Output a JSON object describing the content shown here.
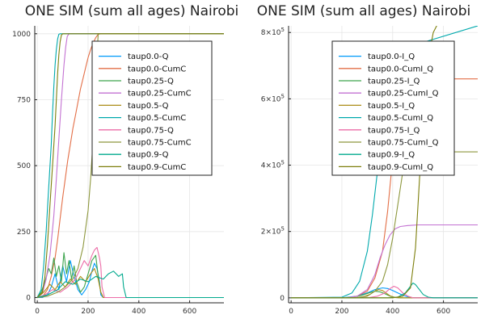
{
  "chart_data": [
    {
      "type": "line",
      "title": "ONE SIM (sum all ages) Nairobi",
      "xlabel": "",
      "ylabel": "",
      "xlim": [
        -10,
        735
      ],
      "ylim": [
        -20,
        1030
      ],
      "xticks": [
        0,
        200,
        400,
        600
      ],
      "xtick_labels": [
        "0",
        "200",
        "400",
        "600"
      ],
      "yticks": [
        0,
        250,
        500,
        750,
        1000
      ],
      "ytick_labels": [
        "0",
        "250",
        "500",
        "750",
        "1000"
      ],
      "grid": true,
      "legend_position": "top-right",
      "series": [
        {
          "name": "taup0.0-Q",
          "color": "#009AFA",
          "x": [
            0,
            20,
            40,
            55,
            70,
            85,
            100,
            115,
            130,
            145,
            160,
            175,
            190,
            205,
            215,
            225,
            235,
            245,
            250,
            260,
            280,
            300,
            735
          ],
          "y": [
            0,
            0,
            10,
            40,
            90,
            30,
            120,
            60,
            140,
            80,
            30,
            10,
            30,
            60,
            100,
            130,
            110,
            60,
            10,
            0,
            0,
            0,
            0
          ]
        },
        {
          "name": "taup0.0-CumC",
          "color": "#E36F47",
          "x": [
            0,
            20,
            40,
            55,
            70,
            80,
            90,
            100,
            110,
            120,
            130,
            140,
            150,
            160,
            170,
            180,
            190,
            200,
            210,
            220,
            230,
            240,
            250,
            260,
            270,
            735
          ],
          "y": [
            0,
            2,
            30,
            80,
            150,
            220,
            300,
            380,
            450,
            520,
            580,
            640,
            690,
            740,
            790,
            830,
            870,
            910,
            940,
            965,
            985,
            998,
            1000,
            1000,
            1000,
            1000
          ]
        },
        {
          "name": "taup0.25-Q",
          "color": "#3EA44E",
          "x": [
            0,
            15,
            30,
            45,
            55,
            65,
            75,
            85,
            95,
            105,
            115,
            125,
            135,
            145,
            155,
            170,
            185,
            200,
            215,
            230,
            240,
            250,
            260,
            270,
            735
          ],
          "y": [
            0,
            20,
            60,
            110,
            90,
            150,
            80,
            120,
            60,
            170,
            90,
            140,
            70,
            120,
            60,
            20,
            40,
            90,
            140,
            160,
            80,
            20,
            0,
            0,
            0
          ]
        },
        {
          "name": "taup0.25-CumC",
          "color": "#C371D2",
          "x": [
            0,
            20,
            35,
            50,
            65,
            75,
            85,
            95,
            105,
            112,
            118,
            125,
            735
          ],
          "y": [
            0,
            15,
            70,
            160,
            310,
            450,
            600,
            750,
            880,
            950,
            990,
            1000,
            1000
          ]
        },
        {
          "name": "taup0.5-Q",
          "color": "#AC8D18",
          "x": [
            0,
            25,
            50,
            70,
            90,
            110,
            130,
            150,
            170,
            190,
            210,
            225,
            240,
            250,
            260,
            735
          ],
          "y": [
            0,
            20,
            50,
            30,
            60,
            40,
            70,
            50,
            80,
            60,
            90,
            110,
            70,
            20,
            0,
            0
          ]
        },
        {
          "name": "taup0.5-CumC",
          "color": "#00A9AD",
          "x": [
            0,
            15,
            25,
            35,
            45,
            55,
            60,
            65,
            70,
            75,
            80,
            85,
            90,
            735
          ],
          "y": [
            0,
            30,
            120,
            250,
            420,
            580,
            700,
            800,
            880,
            940,
            980,
            998,
            1000,
            1000
          ]
        },
        {
          "name": "taup0.75-Q",
          "color": "#EC6CA7",
          "x": [
            0,
            30,
            60,
            90,
            120,
            150,
            170,
            185,
            200,
            215,
            225,
            235,
            245,
            250,
            255,
            265,
            735
          ],
          "y": [
            0,
            10,
            30,
            20,
            40,
            70,
            110,
            140,
            120,
            160,
            180,
            190,
            150,
            120,
            40,
            0,
            0
          ]
        },
        {
          "name": "taup0.75-CumC",
          "color": "#8D973D",
          "x": [
            0,
            40,
            80,
            110,
            140,
            160,
            180,
            200,
            210,
            220,
            228,
            235,
            240,
            735
          ],
          "y": [
            0,
            5,
            20,
            40,
            70,
            110,
            190,
            330,
            450,
            600,
            760,
            920,
            1000,
            1000
          ]
        },
        {
          "name": "taup0.9-Q",
          "color": "#00A98D",
          "x": [
            0,
            40,
            80,
            110,
            140,
            170,
            200,
            230,
            260,
            280,
            300,
            320,
            335,
            340,
            350,
            370,
            735
          ],
          "y": [
            0,
            10,
            30,
            60,
            50,
            70,
            60,
            80,
            70,
            90,
            100,
            80,
            90,
            40,
            0,
            0,
            0
          ]
        },
        {
          "name": "taup0.9-CumC",
          "color": "#7D7F0C",
          "x": [
            0,
            20,
            30,
            40,
            50,
            60,
            70,
            75,
            80,
            85,
            90,
            95,
            100,
            735
          ],
          "y": [
            0,
            20,
            80,
            200,
            350,
            500,
            650,
            750,
            850,
            920,
            970,
            995,
            1000,
            1000
          ]
        }
      ]
    },
    {
      "type": "line",
      "title": "ONE SIM (sum all ages) Nairobi",
      "xlabel": "",
      "ylabel": "",
      "xlim": [
        -10,
        735
      ],
      "ylim": [
        -15000,
        820000
      ],
      "xticks": [
        0,
        200,
        400,
        600
      ],
      "xtick_labels": [
        "0",
        "200",
        "400",
        "600"
      ],
      "yticks": [
        0,
        200000,
        400000,
        600000,
        800000
      ],
      "ytick_labels": [
        {
          "base": "0",
          "exp": ""
        },
        {
          "base": "2×10",
          "exp": "5"
        },
        {
          "base": "4×10",
          "exp": "5"
        },
        {
          "base": "6×10",
          "exp": "5"
        },
        {
          "base": "8×10",
          "exp": "5"
        }
      ],
      "grid": true,
      "legend_position": "top-right",
      "series": [
        {
          "name": "taup0.0-I_Q",
          "color": "#009AFA",
          "x": [
            0,
            200,
            260,
            300,
            330,
            360,
            380,
            400,
            420,
            440,
            460,
            480,
            735
          ],
          "y": [
            0,
            0,
            5000,
            15000,
            25000,
            30000,
            28000,
            22000,
            15000,
            8000,
            3000,
            0,
            0
          ]
        },
        {
          "name": "taup0.0-CumI_Q",
          "color": "#E36F47",
          "x": [
            0,
            220,
            260,
            300,
            330,
            360,
            380,
            400,
            420,
            440,
            460,
            480,
            500,
            735
          ],
          "y": [
            0,
            0,
            5000,
            20000,
            60000,
            140000,
            260000,
            420000,
            540000,
            610000,
            645000,
            658000,
            660000,
            660000
          ]
        },
        {
          "name": "taup0.25-I_Q",
          "color": "#3EA44E",
          "x": [
            0,
            200,
            240,
            280,
            310,
            330,
            350,
            370,
            390,
            410,
            430,
            735
          ],
          "y": [
            0,
            0,
            2000,
            8000,
            16000,
            20000,
            18000,
            12000,
            5000,
            1000,
            0,
            0
          ]
        },
        {
          "name": "taup0.25-CumI_Q",
          "color": "#C371D2",
          "x": [
            0,
            220,
            260,
            300,
            330,
            350,
            370,
            390,
            410,
            430,
            460,
            500,
            540,
            735
          ],
          "y": [
            0,
            0,
            5000,
            25000,
            70000,
            120000,
            160000,
            190000,
            208000,
            215000,
            218000,
            220000,
            220000,
            220000
          ]
        },
        {
          "name": "taup0.5-I_Q",
          "color": "#AC8D18",
          "x": [
            0,
            240,
            280,
            310,
            330,
            345,
            360,
            375,
            390,
            410,
            430,
            735
          ],
          "y": [
            0,
            0,
            2000,
            10000,
            20000,
            25000,
            22000,
            14000,
            6000,
            1000,
            0,
            0
          ]
        },
        {
          "name": "taup0.5-CumI_Q",
          "color": "#00A9AD",
          "x": [
            0,
            200,
            240,
            270,
            300,
            320,
            340,
            360,
            375,
            390,
            735
          ],
          "y": [
            0,
            2000,
            15000,
            50000,
            140000,
            250000,
            380000,
            520000,
            640000,
            740000,
            820000
          ]
        },
        {
          "name": "taup0.75-I_Q",
          "color": "#EC6CA7",
          "x": [
            0,
            300,
            340,
            370,
            390,
            405,
            420,
            440,
            460,
            480,
            735
          ],
          "y": [
            0,
            0,
            5000,
            15000,
            28000,
            35000,
            30000,
            15000,
            5000,
            0,
            0
          ]
        },
        {
          "name": "taup0.75-CumI_Q",
          "color": "#8D973D",
          "x": [
            0,
            250,
            300,
            330,
            360,
            380,
            400,
            420,
            440,
            460,
            480,
            735
          ],
          "y": [
            0,
            0,
            5000,
            20000,
            50000,
            100000,
            180000,
            280000,
            380000,
            430000,
            440000,
            440000
          ]
        },
        {
          "name": "taup0.9-I_Q",
          "color": "#00A98D",
          "x": [
            0,
            380,
            420,
            450,
            470,
            480,
            490,
            505,
            520,
            540,
            560,
            735
          ],
          "y": [
            0,
            0,
            2000,
            15000,
            35000,
            45000,
            40000,
            25000,
            10000,
            2000,
            0,
            0
          ]
        },
        {
          "name": "taup0.9-CumI_Q",
          "color": "#7D7F0C",
          "x": [
            0,
            400,
            440,
            470,
            490,
            505,
            520,
            540,
            560,
            580,
            620,
            680,
            735
          ],
          "y": [
            0,
            0,
            5000,
            30000,
            150000,
            350000,
            560000,
            720000,
            800000,
            830000,
            845000,
            850000,
            850000
          ]
        }
      ]
    }
  ]
}
